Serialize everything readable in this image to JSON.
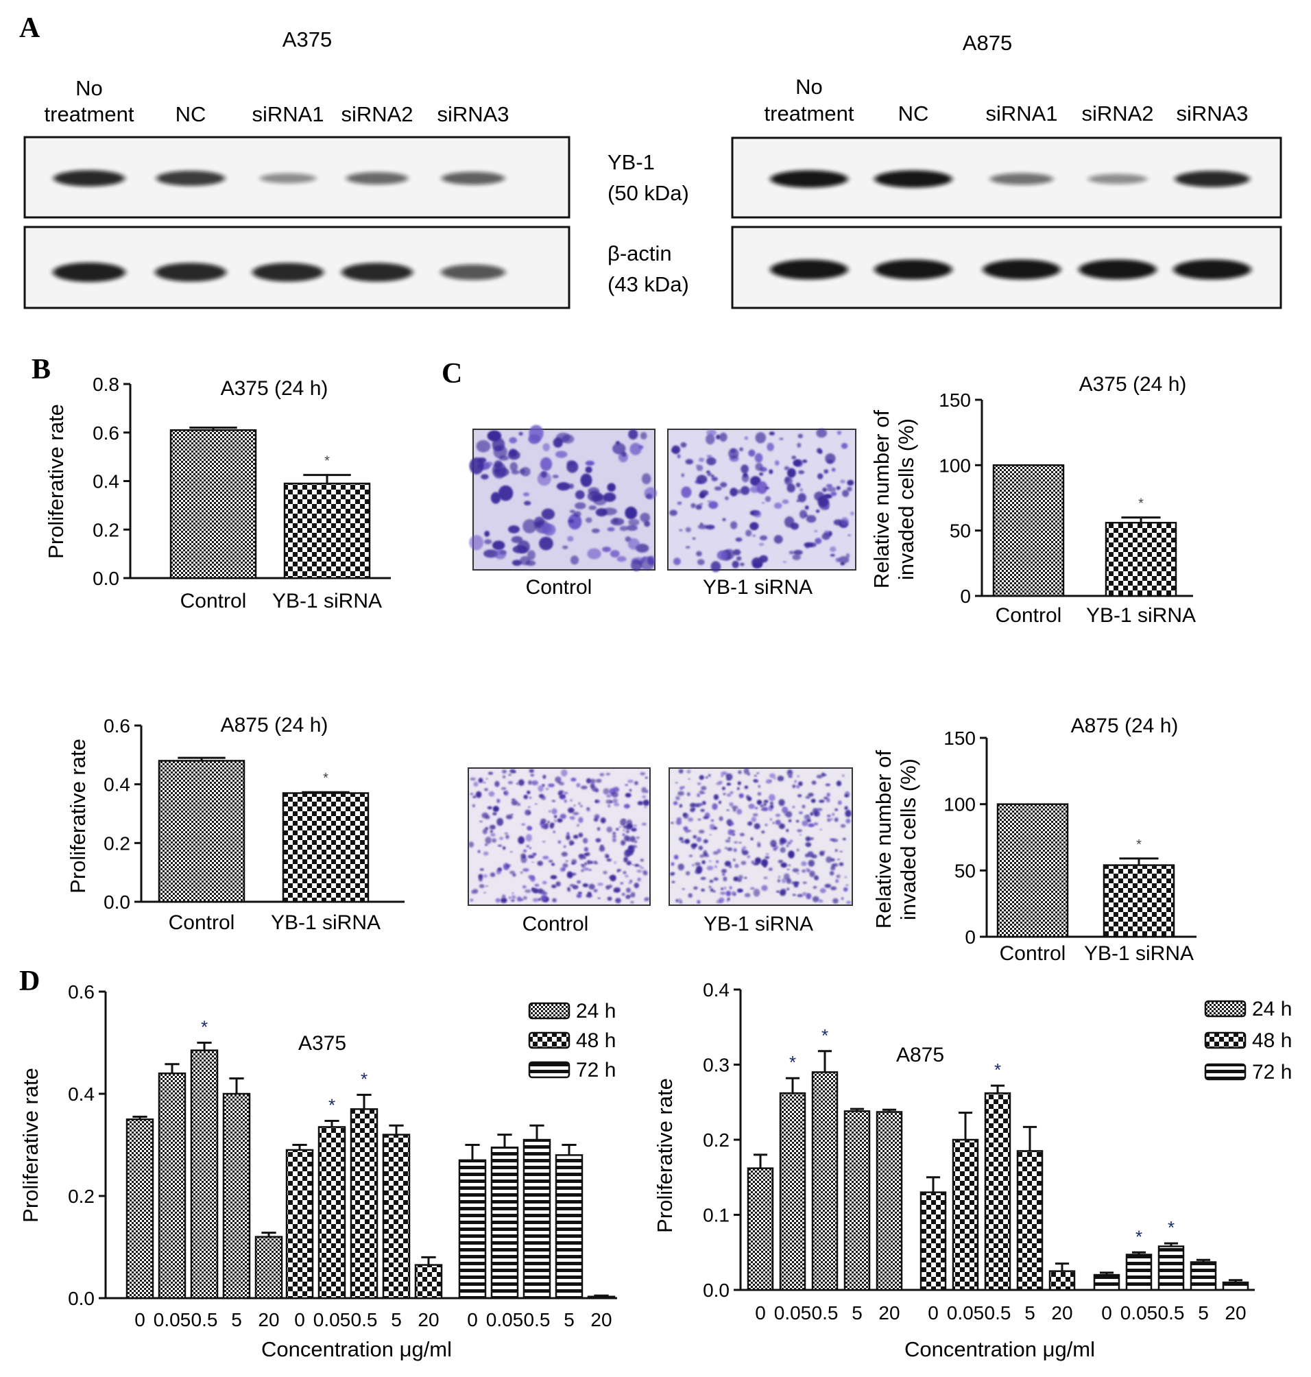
{
  "panels": {
    "A": {
      "letter": "A",
      "blots": [
        {
          "cell_line": "A375",
          "lanes": [
            [
              "No",
              "treatment"
            ],
            [
              "NC"
            ],
            [
              "siRNA1"
            ],
            [
              "siRNA2"
            ],
            [
              "siRNA3"
            ]
          ],
          "yb1_band_intensity": [
            0.85,
            0.75,
            0.3,
            0.5,
            0.55
          ],
          "actin_band_intensity": [
            0.9,
            0.85,
            0.85,
            0.85,
            0.6
          ]
        },
        {
          "cell_line": "A875",
          "lanes": [
            [
              "No",
              "treatment"
            ],
            [
              "NC"
            ],
            [
              "siRNA1"
            ],
            [
              "siRNA2"
            ],
            [
              "siRNA3"
            ]
          ],
          "yb1_band_intensity": [
            0.95,
            0.95,
            0.45,
            0.3,
            0.85
          ],
          "actin_band_intensity": [
            0.95,
            0.95,
            0.95,
            0.95,
            0.95
          ]
        }
      ],
      "yb1_label": [
        "YB-1",
        "(50 kDa)"
      ],
      "actin_label": [
        "β-actin",
        "(43 kDa)"
      ]
    },
    "B": {
      "letter": "B"
    },
    "C": {
      "letter": "C",
      "micrographs": [
        {
          "labels": [
            "Control",
            "YB-1 siRNA"
          ],
          "cell_density": "moderate"
        },
        {
          "labels": [
            "Control",
            "YB-1 siRNA"
          ],
          "cell_density": "high"
        }
      ]
    },
    "D": {
      "letter": "D"
    }
  },
  "chart_data": [
    {
      "type": "bar",
      "panel": "B",
      "title": "A375 (24 h)",
      "categories": [
        "Control",
        "YB-1 siRNA"
      ],
      "values": [
        0.61,
        0.39
      ],
      "errors": [
        0.01,
        0.035
      ],
      "significance": [
        "",
        "*"
      ],
      "ylabel": "Proliferative rate",
      "ylim": [
        0,
        0.8
      ],
      "yticks": [
        "0.0",
        "0.2",
        "0.4",
        "0.6",
        "0.8"
      ],
      "patterns": [
        "fine",
        "checker"
      ]
    },
    {
      "type": "bar",
      "panel": "B",
      "title": "A875 (24 h)",
      "categories": [
        "Control",
        "YB-1 siRNA"
      ],
      "values": [
        0.48,
        0.37
      ],
      "errors": [
        0.01,
        0.003
      ],
      "significance": [
        "",
        "*"
      ],
      "ylabel": "Proliferative rate",
      "ylim": [
        0,
        0.6
      ],
      "yticks": [
        "0.0",
        "0.2",
        "0.4",
        "0.6"
      ],
      "patterns": [
        "fine",
        "checker"
      ]
    },
    {
      "type": "bar",
      "panel": "C",
      "title": "A375 (24 h)",
      "categories": [
        "Control",
        "YB-1 siRNA"
      ],
      "values": [
        100,
        56
      ],
      "errors": [
        0,
        4
      ],
      "significance": [
        "",
        "*"
      ],
      "ylabel": [
        "Relative number of",
        "invaded cells (%)"
      ],
      "ylim": [
        0,
        150
      ],
      "yticks": [
        "0",
        "50",
        "100",
        "150"
      ],
      "patterns": [
        "fine",
        "checker"
      ]
    },
    {
      "type": "bar",
      "panel": "C",
      "title": "A875 (24 h)",
      "categories": [
        "Control",
        "YB-1 siRNA"
      ],
      "values": [
        100,
        54
      ],
      "errors": [
        0,
        5
      ],
      "significance": [
        "",
        "*"
      ],
      "ylabel": [
        "Relative number of",
        "invaded cells (%)"
      ],
      "ylim": [
        0,
        150
      ],
      "yticks": [
        "0",
        "50",
        "100",
        "150"
      ],
      "patterns": [
        "fine",
        "checker"
      ]
    },
    {
      "type": "bar",
      "panel": "D",
      "title": "A375",
      "xlabel": "Concentration μg/ml",
      "ylabel": "Proliferative rate",
      "ylim": [
        0,
        0.6
      ],
      "yticks": [
        "0.0",
        "0.2",
        "0.4",
        "0.6"
      ],
      "categories": [
        "0",
        "0.05",
        "0.5",
        "5",
        "20"
      ],
      "series": [
        {
          "name": "24 h",
          "pattern": "fine",
          "values": [
            0.35,
            0.44,
            0.485,
            0.4,
            0.12
          ],
          "errors": [
            0.005,
            0.018,
            0.015,
            0.03,
            0.008
          ],
          "significance": [
            "",
            "",
            "*",
            "",
            ""
          ]
        },
        {
          "name": "48 h",
          "pattern": "checker",
          "values": [
            0.29,
            0.335,
            0.37,
            0.32,
            0.065
          ],
          "errors": [
            0.01,
            0.012,
            0.028,
            0.018,
            0.015
          ],
          "significance": [
            "",
            "*",
            "*",
            "",
            ""
          ]
        },
        {
          "name": "72 h",
          "pattern": "stripe",
          "values": [
            0.27,
            0.295,
            0.31,
            0.28,
            0.003
          ],
          "errors": [
            0.03,
            0.025,
            0.028,
            0.02,
            0.002
          ],
          "significance": [
            "",
            "",
            "",
            "",
            ""
          ]
        }
      ]
    },
    {
      "type": "bar",
      "panel": "D",
      "title": "A875",
      "xlabel": "Concentration μg/ml",
      "ylabel": "Proliferative rate",
      "ylim": [
        0,
        0.4
      ],
      "yticks": [
        "0.0",
        "0.1",
        "0.2",
        "0.3",
        "0.4"
      ],
      "categories": [
        "0",
        "0.05",
        "0.5",
        "5",
        "20"
      ],
      "series": [
        {
          "name": "24 h",
          "pattern": "fine",
          "values": [
            0.162,
            0.262,
            0.29,
            0.238,
            0.237
          ],
          "errors": [
            0.018,
            0.02,
            0.028,
            0.003,
            0.003
          ],
          "significance": [
            "",
            "*",
            "*",
            "",
            ""
          ]
        },
        {
          "name": "48 h",
          "pattern": "checker",
          "values": [
            0.13,
            0.2,
            0.262,
            0.185,
            0.025
          ],
          "errors": [
            0.02,
            0.036,
            0.01,
            0.032,
            0.01
          ],
          "significance": [
            "",
            "",
            "*",
            "",
            ""
          ]
        },
        {
          "name": "72 h",
          "pattern": "stripe",
          "values": [
            0.02,
            0.047,
            0.058,
            0.037,
            0.01
          ],
          "errors": [
            0.003,
            0.003,
            0.004,
            0.003,
            0.003
          ],
          "significance": [
            "",
            "*",
            "*",
            "",
            ""
          ]
        }
      ]
    }
  ]
}
